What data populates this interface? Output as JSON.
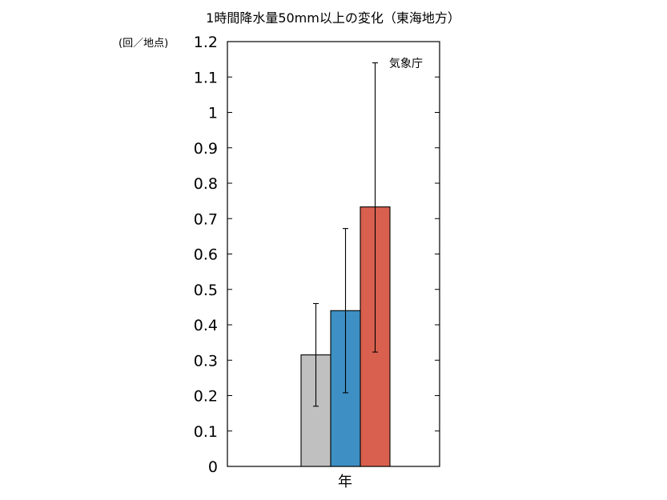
{
  "chart_data": {
    "type": "bar",
    "title": "1時間降水量50mm以上の変化（東海地方）",
    "ylabel": "(回／地点)",
    "annotation": "気象庁",
    "categories": [
      "年"
    ],
    "ylim": [
      0,
      1.2
    ],
    "yticks": [
      0,
      0.1,
      0.2,
      0.3,
      0.4,
      0.5,
      0.6,
      0.7,
      0.8,
      0.9,
      1,
      1.1,
      1.2
    ],
    "ytick_labels": [
      "0",
      "0.1",
      "0.2",
      "0.3",
      "0.4",
      "0.5",
      "0.6",
      "0.7",
      "0.8",
      "0.9",
      "1",
      "1.1",
      "1.2"
    ],
    "grid": false,
    "series": [
      {
        "color": "#c0c0c0",
        "value": 0.315,
        "error_low": 0.17,
        "error_high": 0.46
      },
      {
        "color": "#3d8fc4",
        "value": 0.44,
        "error_low": 0.208,
        "error_high": 0.672
      },
      {
        "color": "#d9604e",
        "value": 0.733,
        "error_low": 0.323,
        "error_high": 1.14
      }
    ]
  }
}
